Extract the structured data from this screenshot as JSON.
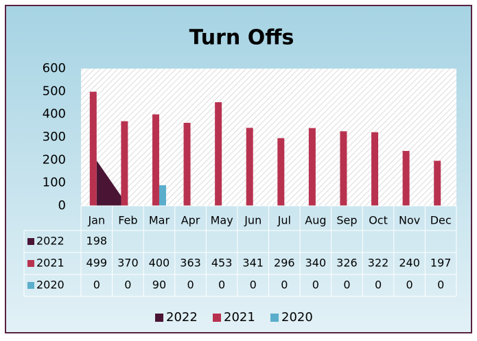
{
  "chart_data": {
    "type": "bar",
    "title": "Turn Offs",
    "categories": [
      "Jan",
      "Feb",
      "Mar",
      "Apr",
      "May",
      "Jun",
      "Jul",
      "Aug",
      "Sep",
      "Oct",
      "Nov",
      "Dec"
    ],
    "series": [
      {
        "name": "2022",
        "color": "#4a1535",
        "type": "area",
        "values": [
          198,
          null,
          null,
          null,
          null,
          null,
          null,
          null,
          null,
          null,
          null,
          null
        ]
      },
      {
        "name": "2021",
        "color": "#b83250",
        "type": "bar",
        "values": [
          499,
          370,
          400,
          363,
          453,
          341,
          296,
          340,
          326,
          322,
          240,
          197
        ]
      },
      {
        "name": "2020",
        "color": "#5aaecb",
        "type": "bar",
        "values": [
          0,
          0,
          90,
          0,
          0,
          0,
          0,
          0,
          0,
          0,
          0,
          0
        ]
      }
    ],
    "ylim": [
      0,
      600
    ],
    "yticks": [
      0,
      100,
      200,
      300,
      400,
      500,
      600
    ],
    "grid": false,
    "data_table": true,
    "legend": "bottom"
  }
}
